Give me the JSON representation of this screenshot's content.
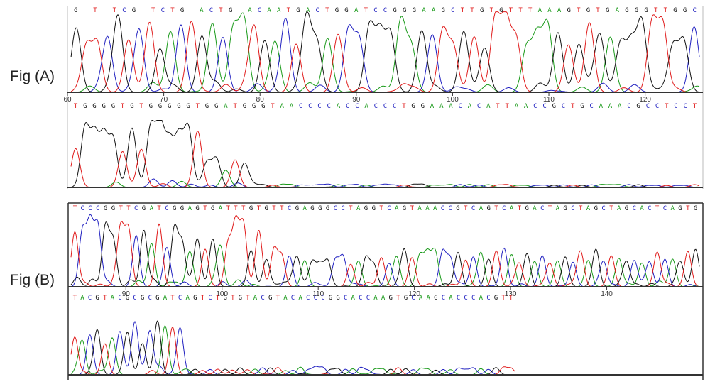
{
  "figure_labels": {
    "a": "Fig (A)",
    "b": "Fig (B)"
  },
  "colors": {
    "A": "#1a9a1a",
    "C": "#2020c0",
    "G": "#111111",
    "T": "#e01b1b",
    "axis": "#333333"
  },
  "chart_data": [
    {
      "type": "line",
      "panel": "A-top",
      "sequence": "G T TCG TCTG ACTG ACAATGACTGGATCCGGGAAGCTTGTGTTTAAAGTGTGAGGGTTGGC",
      "x_ticks": [
        60,
        70,
        80,
        90,
        100,
        110,
        120
      ],
      "xlim": [
        60,
        126
      ]
    },
    {
      "type": "line",
      "panel": "A-bottom",
      "sequence": "TGGGGTGTGGGGGTGGATGGGTAACCCCACCACCCTGGAAACACATTAACCGCTGCAAACGCCTCCT",
      "x_ticks": []
    },
    {
      "type": "line",
      "panel": "B-top",
      "sequence": "TCCCGGTTCGATCGGAGTGATTTGTGTTCGAGGGCCTAGGTCAGTAAACCGTCAGTCATGACTAGCTAGCTAGCACTCAGTG",
      "x_ticks": [
        90,
        100,
        110,
        120,
        130,
        140
      ],
      "xlim": [
        84,
        150
      ]
    },
    {
      "type": "line",
      "panel": "B-bottom",
      "sequence": "TACGTACGCGCGATCAGTCTGTGTACGTACACCCGGCACCAAGTGCAAGCACCCACGTT",
      "x_ticks": []
    }
  ]
}
